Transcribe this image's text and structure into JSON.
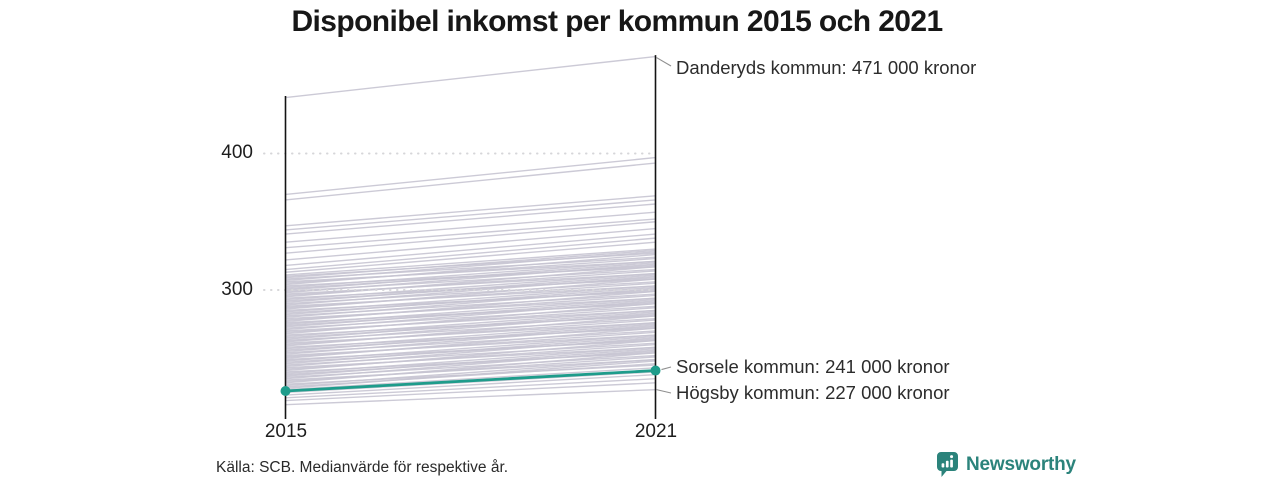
{
  "title": "Disponibel inkomst per kommun 2015 och 2021",
  "footer": {
    "source_note": "Källa: SCB. Medianvärde för respektive år."
  },
  "brand": {
    "name": "Newsworthy",
    "icon": "newsworthy-bar-chart-bubble-icon",
    "color": "#2b837b"
  },
  "colors": {
    "accent_teal": "#1e9c8b",
    "slope_gray": "#c7c4d2",
    "axis": "#141414",
    "gridline": "#d6d6d9",
    "connector": "#8f8f8f",
    "title_text": "#171717",
    "body_text": "#2c2c2c"
  },
  "chart_data": {
    "type": "line",
    "variant": "slope",
    "title": "Disponibel inkomst per kommun 2015 och 2021",
    "x_labels": [
      "2015",
      "2021"
    ],
    "y_ticks": [
      {
        "label": "400",
        "value": 400
      },
      {
        "label": "300",
        "value": 300
      }
    ],
    "ylim": [
      205,
      480
    ],
    "unit": "tusen kronor",
    "grid": "dotted horizontal gridlines at y ticks, no legend",
    "annotations": [
      {
        "text": "Danderyds kommun: 471 000 kronor",
        "year": "2021",
        "value": 471,
        "highlight": false
      },
      {
        "text": "Sorsele kommun: 241 000 kronor",
        "year": "2021",
        "value": 241,
        "highlight": true
      },
      {
        "text": "Högsby kommun: 227 000 kronor",
        "year": "2021",
        "value": 227,
        "highlight": false
      }
    ],
    "highlight_series": {
      "name": "Sorsele kommun",
      "values": [
        226,
        241
      ],
      "color": "#1e9c8b"
    },
    "named_series": [
      {
        "name": "Danderyds kommun",
        "values": [
          441,
          471
        ]
      },
      {
        "name": "Sorsele kommun",
        "values": [
          226,
          241
        ]
      },
      {
        "name": "Högsby kommun",
        "values": [
          216,
          227
        ]
      }
    ],
    "series_gray": [
      [
        441,
        471
      ],
      [
        370,
        397
      ],
      [
        366,
        393
      ],
      [
        347,
        369
      ],
      [
        344,
        366
      ],
      [
        341,
        363
      ],
      [
        335,
        357
      ],
      [
        331,
        352
      ],
      [
        327,
        350
      ],
      [
        322,
        345
      ],
      [
        318,
        341
      ],
      [
        315,
        338
      ],
      [
        313,
        335
      ],
      [
        311,
        330
      ],
      [
        310,
        327
      ],
      [
        309,
        329
      ],
      [
        308,
        324
      ],
      [
        307,
        328
      ],
      [
        306,
        321
      ],
      [
        305,
        323
      ],
      [
        304,
        326
      ],
      [
        303,
        317
      ],
      [
        302,
        321
      ],
      [
        301,
        318
      ],
      [
        300,
        320
      ],
      [
        299,
        315
      ],
      [
        298,
        319
      ],
      [
        297,
        312
      ],
      [
        296,
        314
      ],
      [
        295,
        317
      ],
      [
        294,
        308
      ],
      [
        293,
        312
      ],
      [
        292,
        309
      ],
      [
        291,
        311
      ],
      [
        290,
        306
      ],
      [
        289,
        310
      ],
      [
        288,
        303
      ],
      [
        287,
        305
      ],
      [
        286,
        308
      ],
      [
        285,
        299
      ],
      [
        284,
        303
      ],
      [
        283,
        300
      ],
      [
        282,
        302
      ],
      [
        281,
        297
      ],
      [
        280,
        301
      ],
      [
        279,
        294
      ],
      [
        278,
        296
      ],
      [
        277,
        299
      ],
      [
        276,
        290
      ],
      [
        275,
        294
      ],
      [
        274,
        291
      ],
      [
        273,
        293
      ],
      [
        272,
        288
      ],
      [
        271,
        292
      ],
      [
        270,
        285
      ],
      [
        269,
        287
      ],
      [
        268,
        290
      ],
      [
        267,
        281
      ],
      [
        266,
        285
      ],
      [
        265,
        282
      ],
      [
        264,
        284
      ],
      [
        263,
        279
      ],
      [
        262,
        283
      ],
      [
        261,
        276
      ],
      [
        260,
        278
      ],
      [
        259,
        281
      ],
      [
        258,
        272
      ],
      [
        257,
        276
      ],
      [
        256,
        273
      ],
      [
        255,
        275
      ],
      [
        254,
        270
      ],
      [
        253,
        274
      ],
      [
        252,
        267
      ],
      [
        251,
        269
      ],
      [
        250,
        272
      ],
      [
        249,
        263
      ],
      [
        248,
        267
      ],
      [
        247,
        264
      ],
      [
        246,
        266
      ],
      [
        245,
        261
      ],
      [
        244,
        265
      ],
      [
        243,
        258
      ],
      [
        242,
        260
      ],
      [
        241,
        263
      ],
      [
        240,
        254
      ],
      [
        239,
        258
      ],
      [
        238,
        255
      ],
      [
        237,
        257
      ],
      [
        236,
        252
      ],
      [
        235,
        256
      ],
      [
        234,
        249
      ],
      [
        233,
        251
      ],
      [
        232,
        254
      ],
      [
        231,
        245
      ],
      [
        230,
        249
      ],
      [
        229,
        246
      ],
      [
        228,
        248
      ],
      [
        227,
        243
      ],
      [
        225,
        240
      ],
      [
        223,
        238
      ],
      [
        221,
        235
      ],
      [
        219,
        232
      ],
      [
        216,
        227
      ]
    ]
  }
}
